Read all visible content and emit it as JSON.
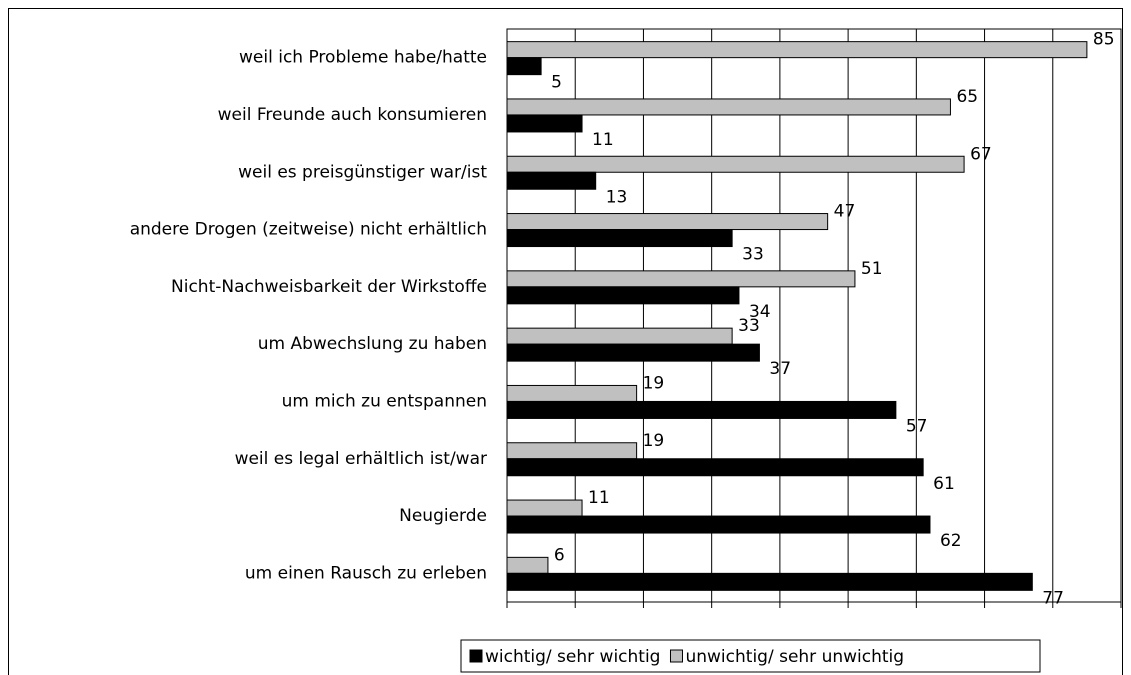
{
  "chart_data": {
    "type": "barh",
    "categories": [
      "weil ich Probleme habe/hatte",
      "weil Freunde auch konsumieren",
      "weil es preisgünstiger war/ist",
      "andere Drogen (zeitweise) nicht erhältlich",
      "Nicht-Nachweisbarkeit der Wirkstoffe",
      "um Abwechslung zu haben",
      "um mich zu entspannen",
      "weil es legal erhältlich ist/war",
      "Neugierde",
      "um einen Rausch zu erleben"
    ],
    "series": [
      {
        "name": "wichtig/ sehr wichtig",
        "color": "#000000",
        "values": [
          5,
          11,
          13,
          33,
          34,
          37,
          57,
          61,
          62,
          77
        ]
      },
      {
        "name": "unwichtig/ sehr unwichtig",
        "color": "#c0c0c0",
        "values": [
          85,
          65,
          67,
          47,
          51,
          33,
          19,
          19,
          11,
          6
        ]
      }
    ],
    "xlim": [
      0,
      90
    ],
    "xticks": [
      0,
      10,
      20,
      30,
      40,
      50,
      60,
      70,
      80,
      90
    ],
    "grid": true,
    "legend": "bottom"
  }
}
